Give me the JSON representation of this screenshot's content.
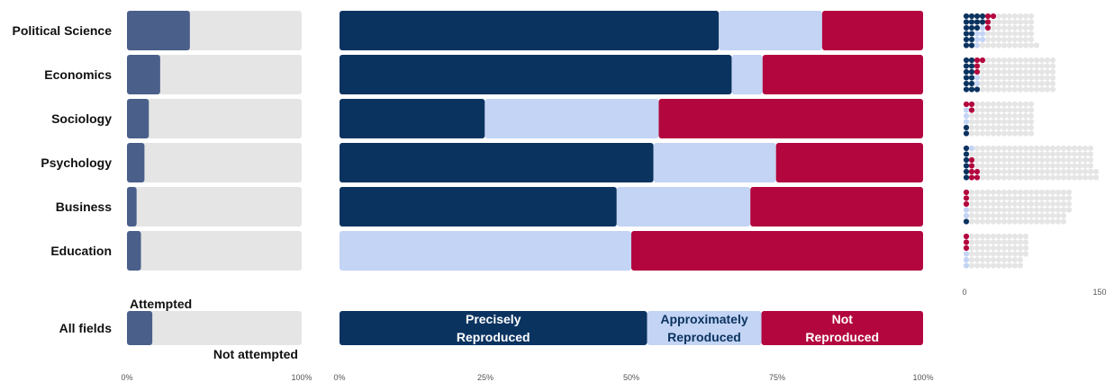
{
  "chart_data": {
    "type": "bar",
    "categories": [
      "Political Science",
      "Economics",
      "Sociology",
      "Psychology",
      "Business",
      "Education"
    ],
    "summary_label": "All fields",
    "colors": {
      "precise": "#0b3360",
      "approx": "#c3d4f4",
      "not_reproduced": "#b3063e",
      "attempted": "#4a5f8a",
      "not_attempted": "#e5e5e5"
    },
    "attempted_panel": {
      "type": "bar",
      "attempted_share": [
        0.36,
        0.19,
        0.125,
        0.1,
        0.055,
        0.08
      ],
      "summary_attempted_share": 0.145,
      "annotations": {
        "attempted": "Attempted",
        "not_attempted": "Not attempted"
      },
      "x_ticks": [
        "0%",
        "100%"
      ]
    },
    "outcome_panel": {
      "type": "bar",
      "series_names": [
        "Precisely Reproduced",
        "Approximately Reproduced",
        "Not Reproduced"
      ],
      "precise_share": [
        0.65,
        0.672,
        0.249,
        0.538,
        0.475,
        0.0
      ],
      "approx_share": [
        0.177,
        0.053,
        0.298,
        0.21,
        0.229,
        0.5
      ],
      "not_reproduced_share": [
        0.173,
        0.275,
        0.453,
        0.252,
        0.296,
        0.5
      ],
      "summary": {
        "precise_share": 0.527,
        "approx_share": 0.196,
        "not_reproduced_share": 0.277,
        "labels": [
          [
            "Precisely",
            "Reproduced"
          ],
          [
            "Approximately",
            "Reproduced"
          ],
          [
            "Not",
            "Reproduced"
          ]
        ]
      },
      "x_ticks": [
        "0%",
        "25%",
        "50%",
        "75%",
        "100%"
      ]
    },
    "dot_panel": {
      "type": "scatter",
      "description": "Each dot is one study, arranged in rows of 6 per field",
      "x_ticks": [
        "0",
        "150"
      ],
      "x_tick_values": [
        0,
        150
      ],
      "rows": [
        [
          {
            "precise": 4,
            "approx": 0,
            "not": 2,
            "unattempted": 7
          },
          {
            "precise": 4,
            "approx": 0,
            "not": 1,
            "unattempted": 8
          },
          {
            "precise": 3,
            "approx": 1,
            "not": 1,
            "unattempted": 8
          },
          {
            "precise": 2,
            "approx": 2,
            "not": 0,
            "unattempted": 9
          },
          {
            "precise": 2,
            "approx": 2,
            "not": 0,
            "unattempted": 9
          },
          {
            "precise": 2,
            "approx": 1,
            "not": 0,
            "unattempted": 11
          }
        ],
        [
          {
            "precise": 2,
            "approx": 0,
            "not": 2,
            "unattempted": 13
          },
          {
            "precise": 2,
            "approx": 0,
            "not": 1,
            "unattempted": 14
          },
          {
            "precise": 2,
            "approx": 0,
            "not": 1,
            "unattempted": 14
          },
          {
            "precise": 2,
            "approx": 1,
            "not": 0,
            "unattempted": 14
          },
          {
            "precise": 2,
            "approx": 1,
            "not": 0,
            "unattempted": 14
          },
          {
            "precise": 3,
            "approx": 0,
            "not": 0,
            "unattempted": 14
          }
        ],
        [
          {
            "precise": 0,
            "approx": 0,
            "not": 2,
            "unattempted": 11
          },
          {
            "precise": 0,
            "approx": 1,
            "not": 1,
            "unattempted": 11
          },
          {
            "precise": 0,
            "approx": 1,
            "not": 0,
            "unattempted": 12
          },
          {
            "precise": 0,
            "approx": 1,
            "not": 0,
            "unattempted": 12
          },
          {
            "precise": 1,
            "approx": 0,
            "not": 0,
            "unattempted": 12
          },
          {
            "precise": 1,
            "approx": 0,
            "not": 0,
            "unattempted": 12
          }
        ],
        [
          {
            "precise": 1,
            "approx": 1,
            "not": 0,
            "unattempted": 22
          },
          {
            "precise": 1,
            "approx": 0,
            "not": 0,
            "unattempted": 23
          },
          {
            "precise": 1,
            "approx": 0,
            "not": 1,
            "unattempted": 22
          },
          {
            "precise": 1,
            "approx": 0,
            "not": 1,
            "unattempted": 22
          },
          {
            "precise": 1,
            "approx": 0,
            "not": 2,
            "unattempted": 22
          },
          {
            "precise": 1,
            "approx": 0,
            "not": 2,
            "unattempted": 22
          }
        ],
        [
          {
            "precise": 0,
            "approx": 0,
            "not": 1,
            "unattempted": 19
          },
          {
            "precise": 0,
            "approx": 0,
            "not": 1,
            "unattempted": 19
          },
          {
            "precise": 0,
            "approx": 0,
            "not": 1,
            "unattempted": 19
          },
          {
            "precise": 0,
            "approx": 1,
            "not": 0,
            "unattempted": 19
          },
          {
            "precise": 0,
            "approx": 1,
            "not": 0,
            "unattempted": 18
          },
          {
            "precise": 1,
            "approx": 0,
            "not": 0,
            "unattempted": 18
          }
        ],
        [
          {
            "precise": 0,
            "approx": 0,
            "not": 1,
            "unattempted": 11
          },
          {
            "precise": 0,
            "approx": 0,
            "not": 1,
            "unattempted": 11
          },
          {
            "precise": 0,
            "approx": 0,
            "not": 1,
            "unattempted": 11
          },
          {
            "precise": 0,
            "approx": 1,
            "not": 0,
            "unattempted": 11
          },
          {
            "precise": 0,
            "approx": 1,
            "not": 0,
            "unattempted": 10
          },
          {
            "precise": 0,
            "approx": 1,
            "not": 0,
            "unattempted": 10
          }
        ]
      ]
    }
  }
}
